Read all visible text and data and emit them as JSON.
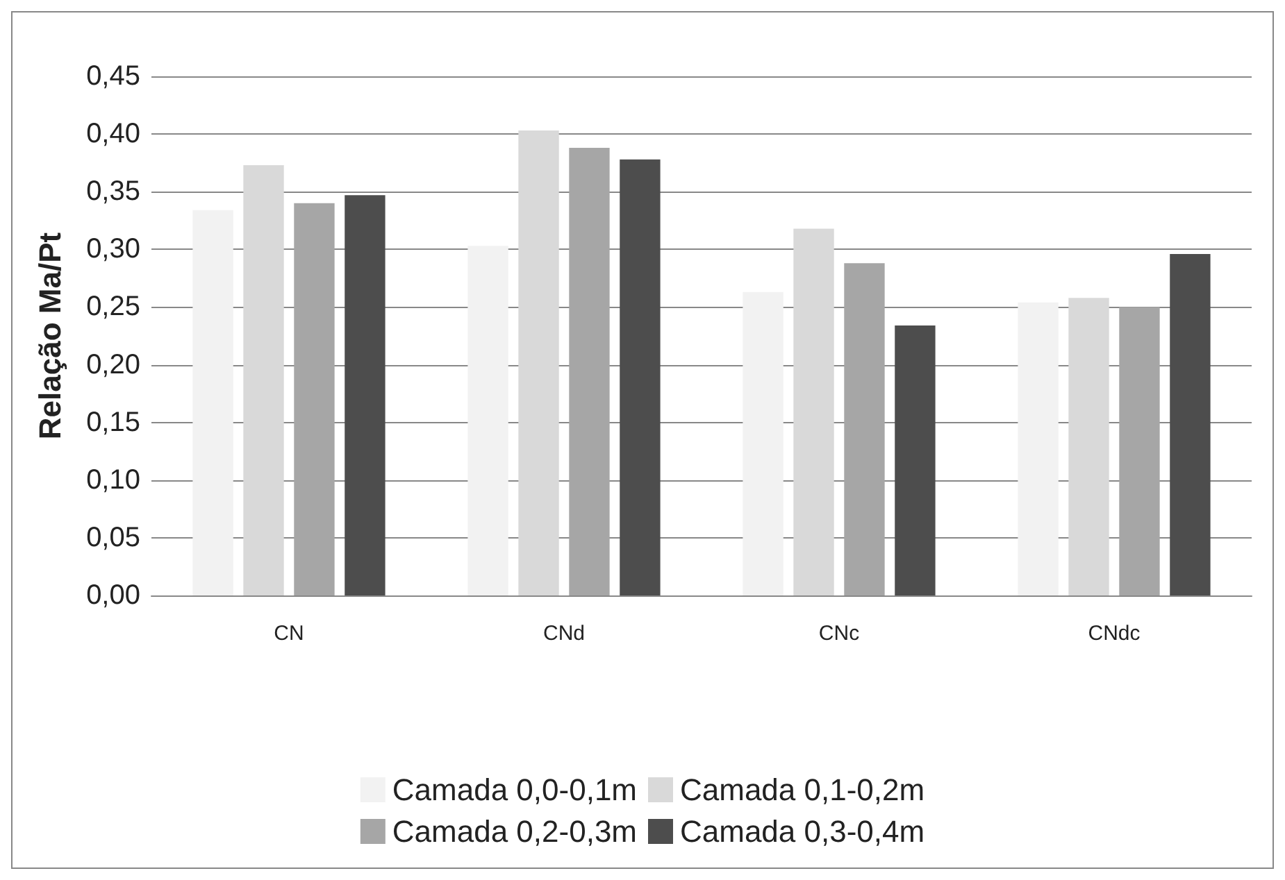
{
  "chart_data": {
    "type": "bar",
    "ylabel": "Relação Ma/Pt",
    "categories": [
      "CN",
      "CNd",
      "CNc",
      "CNdc"
    ],
    "series": [
      {
        "name": "Camada 0,0-0,1m",
        "color": "#f2f2f2",
        "values": [
          0.334,
          0.303,
          0.263,
          0.254
        ]
      },
      {
        "name": "Camada 0,1-0,2m",
        "color": "#d9d9d9",
        "values": [
          0.373,
          0.403,
          0.318,
          0.258
        ]
      },
      {
        "name": "Camada 0,2-0,3m",
        "color": "#a6a6a6",
        "values": [
          0.34,
          0.388,
          0.288,
          0.25
        ]
      },
      {
        "name": "Camada 0,3-0,4m",
        "color": "#4d4d4d",
        "values": [
          0.347,
          0.378,
          0.234,
          0.296
        ]
      }
    ],
    "ylim": [
      0,
      0.45
    ],
    "yticks": [
      {
        "value": 0,
        "label": "0,00"
      },
      {
        "value": 0.05,
        "label": "0,05"
      },
      {
        "value": 0.1,
        "label": "0,10"
      },
      {
        "value": 0.15,
        "label": "0,15"
      },
      {
        "value": 0.2,
        "label": "0,20"
      },
      {
        "value": 0.25,
        "label": "0,25"
      },
      {
        "value": 0.3,
        "label": "0,30"
      },
      {
        "value": 0.35,
        "label": "0,35"
      },
      {
        "value": 0.4,
        "label": "0,40"
      },
      {
        "value": 0.45,
        "label": "0,45"
      }
    ],
    "grid": "y",
    "legend": "bottom"
  }
}
